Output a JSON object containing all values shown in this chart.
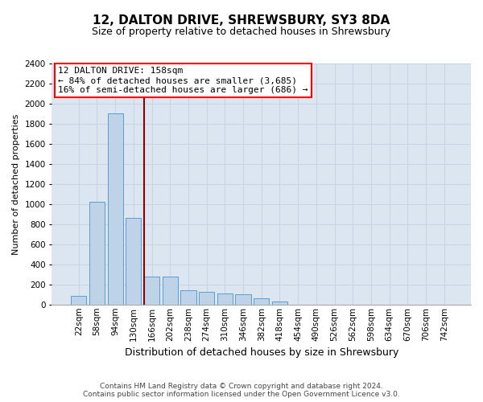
{
  "title": "12, DALTON DRIVE, SHREWSBURY, SY3 8DA",
  "subtitle": "Size of property relative to detached houses in Shrewsbury",
  "xlabel": "Distribution of detached houses by size in Shrewsbury",
  "ylabel": "Number of detached properties",
  "categories": [
    "22sqm",
    "58sqm",
    "94sqm",
    "130sqm",
    "166sqm",
    "202sqm",
    "238sqm",
    "274sqm",
    "310sqm",
    "346sqm",
    "382sqm",
    "418sqm",
    "454sqm",
    "490sqm",
    "526sqm",
    "562sqm",
    "598sqm",
    "634sqm",
    "670sqm",
    "706sqm",
    "742sqm"
  ],
  "values": [
    90,
    1020,
    1900,
    860,
    280,
    280,
    140,
    130,
    110,
    100,
    60,
    30,
    0,
    0,
    0,
    0,
    0,
    0,
    0,
    0,
    0
  ],
  "bar_color": "#bed3e8",
  "bar_edge_color": "#5b9bd5",
  "red_line_index": 4,
  "ylim": [
    0,
    2400
  ],
  "yticks": [
    0,
    200,
    400,
    600,
    800,
    1000,
    1200,
    1400,
    1600,
    1800,
    2000,
    2200,
    2400
  ],
  "annotation_box_text": "12 DALTON DRIVE: 158sqm\n← 84% of detached houses are smaller (3,685)\n16% of semi-detached houses are larger (686) →",
  "footer_line1": "Contains HM Land Registry data © Crown copyright and database right 2024.",
  "footer_line2": "Contains public sector information licensed under the Open Government Licence v3.0.",
  "grid_color": "#c8d4e0",
  "background_color": "#dce6f0",
  "title_fontsize": 11,
  "subtitle_fontsize": 9,
  "ylabel_fontsize": 8,
  "xlabel_fontsize": 9,
  "tick_fontsize": 7.5,
  "annotation_fontsize": 8,
  "footer_fontsize": 6.5
}
